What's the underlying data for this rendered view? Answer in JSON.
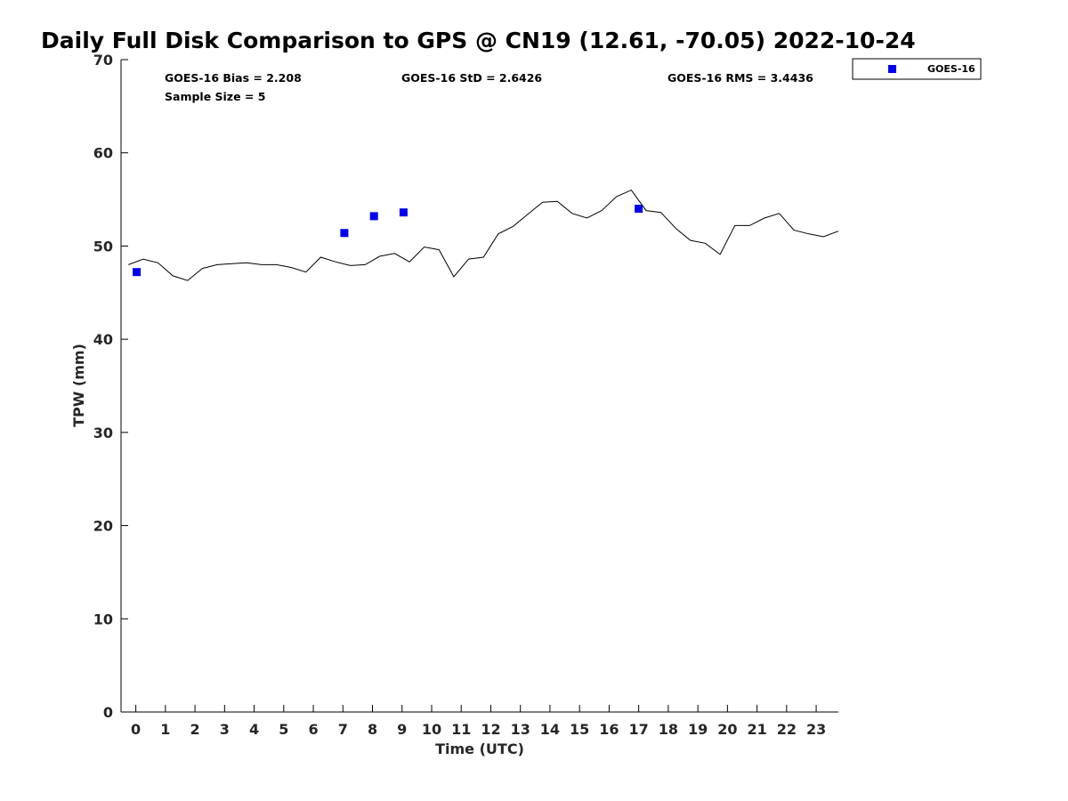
{
  "chart_data": {
    "type": "scatter",
    "title": "Daily Full Disk Comparison to GPS @ CN19 (12.61, -70.05) 2022-10-24",
    "xlabel": "Time (UTC)",
    "ylabel": "TPW (mm)",
    "xlim": [
      -0.5,
      23.75
    ],
    "ylim": [
      0,
      70
    ],
    "x_ticks": [
      0,
      1,
      2,
      3,
      4,
      5,
      6,
      7,
      8,
      9,
      10,
      11,
      12,
      13,
      14,
      15,
      16,
      17,
      18,
      19,
      20,
      21,
      22,
      23
    ],
    "y_ticks": [
      0,
      10,
      20,
      30,
      40,
      50,
      60,
      70
    ],
    "grid": false,
    "legend_position": "top-right",
    "stats": {
      "bias": "GOES-16 Bias = 2.208",
      "std": "GOES-16 StD = 2.6426",
      "rms": "GOES-16 RMS = 3.4436",
      "sample": "Sample Size = 5"
    },
    "series": [
      {
        "name": "GOES-16",
        "kind": "scatter",
        "color": "#0000ee",
        "x": [
          0.03,
          7.05,
          8.05,
          9.05,
          17.0
        ],
        "y": [
          47.2,
          51.4,
          53.2,
          53.6,
          54.0
        ]
      },
      {
        "name": "",
        "kind": "line",
        "color": "#000000",
        "x": [
          -0.25,
          0.25,
          0.75,
          1.25,
          1.75,
          2.25,
          2.75,
          3.25,
          3.75,
          4.25,
          4.75,
          5.25,
          5.75,
          6.25,
          6.75,
          7.25,
          7.75,
          8.25,
          8.75,
          9.25,
          9.75,
          10.25,
          10.75,
          11.25,
          11.75,
          12.25,
          12.75,
          13.25,
          13.75,
          14.25,
          14.75,
          15.25,
          15.75,
          16.25,
          16.75,
          17.25,
          17.75,
          18.25,
          18.75,
          19.25,
          19.75,
          20.25,
          20.75,
          21.25,
          21.75,
          22.25,
          22.75,
          23.25,
          23.75
        ],
        "y": [
          48.0,
          48.6,
          48.2,
          46.8,
          46.3,
          47.6,
          48.0,
          48.1,
          48.2,
          48.0,
          48.0,
          47.7,
          47.2,
          48.8,
          48.3,
          47.9,
          48.0,
          48.9,
          49.2,
          48.3,
          49.9,
          49.6,
          46.7,
          48.6,
          48.8,
          51.3,
          52.1,
          53.4,
          54.7,
          54.8,
          53.5,
          53.0,
          53.8,
          55.3,
          56.0,
          53.8,
          53.6,
          51.9,
          50.6,
          50.3,
          49.1,
          52.2,
          52.2,
          53.0,
          53.5,
          51.7,
          51.3,
          51.0,
          51.6
        ]
      }
    ]
  }
}
